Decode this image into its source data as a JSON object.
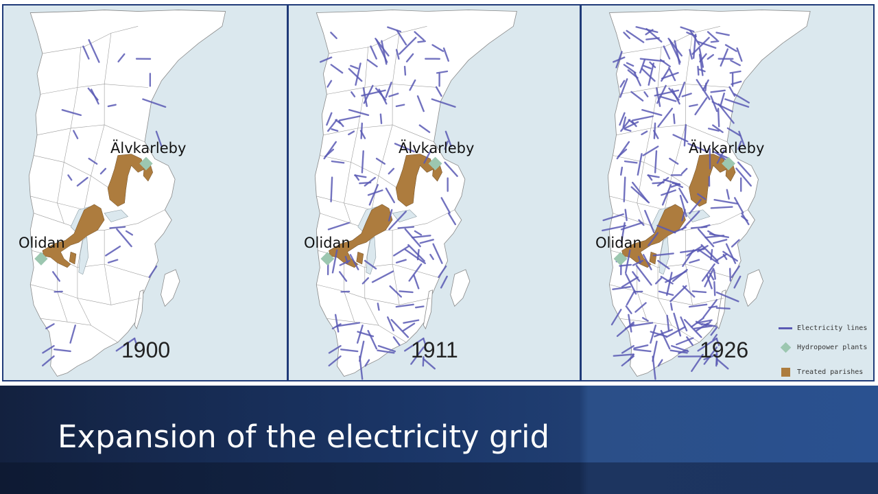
{
  "slide": {
    "title": "Expansion of the electricity grid"
  },
  "maps": [
    {
      "year": "1900",
      "labels": {
        "north_site": "Älvkarleby",
        "west_site": "Olidan"
      },
      "line_density": 0.12
    },
    {
      "year": "1911",
      "labels": {
        "north_site": "Älvkarleby",
        "west_site": "Olidan"
      },
      "line_density": 0.5
    },
    {
      "year": "1926",
      "labels": {
        "north_site": "Älvkarleby",
        "west_site": "Olidan"
      },
      "line_density": 1.0
    }
  ],
  "legend": {
    "items": [
      {
        "label": "Electricity lines",
        "icon": "line-swatch",
        "color": "#5a5ab4"
      },
      {
        "label": "Hydropower plants",
        "icon": "diamond-swatch",
        "color": "#9cc7b0"
      },
      {
        "label": "Treated parishes",
        "icon": "square-swatch",
        "color": "#ad7c3e"
      }
    ]
  },
  "colors": {
    "sea": "#dbe8ee",
    "land": "#ffffff",
    "border": "#1f3a78",
    "lines": "#5a5ab4",
    "parishes": "#ad7c3e",
    "plant": "#9cc7b0"
  }
}
